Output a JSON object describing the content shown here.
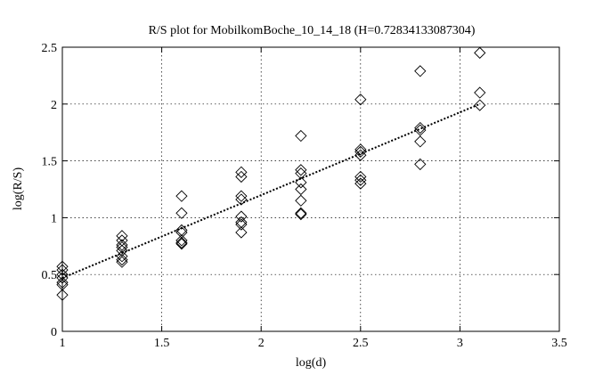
{
  "chart_data": {
    "type": "scatter",
    "title": "R/S plot for MobilkomBoche_10_14_18 (H=0.72834133087304)",
    "xlabel": "log(d)",
    "ylabel": "log(R/S)",
    "xlim": [
      1,
      3.5
    ],
    "ylim": [
      0,
      2.5
    ],
    "xticks": [
      "1",
      "1.5",
      "2",
      "2.5",
      "3",
      "3.5"
    ],
    "yticks": [
      "0",
      "0.5",
      "1",
      "1.5",
      "2",
      "2.5"
    ],
    "grid": true,
    "legend": "none",
    "series": [
      {
        "marker": "diamond",
        "points": [
          [
            1.0,
            0.57
          ],
          [
            1.0,
            0.54
          ],
          [
            1.0,
            0.5
          ],
          [
            1.0,
            0.47
          ],
          [
            1.0,
            0.43
          ],
          [
            1.0,
            0.41
          ],
          [
            1.0,
            0.32
          ],
          [
            1.3,
            0.84
          ],
          [
            1.3,
            0.8
          ],
          [
            1.3,
            0.76
          ],
          [
            1.3,
            0.74
          ],
          [
            1.3,
            0.71
          ],
          [
            1.3,
            0.66
          ],
          [
            1.3,
            0.63
          ],
          [
            1.3,
            0.61
          ],
          [
            1.6,
            1.19
          ],
          [
            1.6,
            1.04
          ],
          [
            1.6,
            0.89
          ],
          [
            1.6,
            0.87
          ],
          [
            1.6,
            0.8
          ],
          [
            1.6,
            0.78
          ],
          [
            1.6,
            0.77
          ],
          [
            1.9,
            1.4
          ],
          [
            1.9,
            1.36
          ],
          [
            1.9,
            1.19
          ],
          [
            1.9,
            1.16
          ],
          [
            1.9,
            1.01
          ],
          [
            1.9,
            0.96
          ],
          [
            1.9,
            0.94
          ],
          [
            1.9,
            0.87
          ],
          [
            2.2,
            1.72
          ],
          [
            2.2,
            1.42
          ],
          [
            2.2,
            1.39
          ],
          [
            2.2,
            1.31
          ],
          [
            2.2,
            1.25
          ],
          [
            2.2,
            1.15
          ],
          [
            2.2,
            1.04
          ],
          [
            2.2,
            1.03
          ],
          [
            2.5,
            2.04
          ],
          [
            2.5,
            1.6
          ],
          [
            2.5,
            1.58
          ],
          [
            2.5,
            1.55
          ],
          [
            2.5,
            1.36
          ],
          [
            2.5,
            1.33
          ],
          [
            2.5,
            1.3
          ],
          [
            2.8,
            2.29
          ],
          [
            2.8,
            1.79
          ],
          [
            2.8,
            1.77
          ],
          [
            2.8,
            1.67
          ],
          [
            2.8,
            1.47
          ],
          [
            3.1,
            2.45
          ],
          [
            3.1,
            2.1
          ],
          [
            3.1,
            1.99
          ]
        ]
      }
    ],
    "fit_line": {
      "x": [
        1.0,
        3.1
      ],
      "y": [
        0.47,
        2.0
      ]
    }
  },
  "colors": {
    "ink": "#000000",
    "background": "#ffffff"
  }
}
